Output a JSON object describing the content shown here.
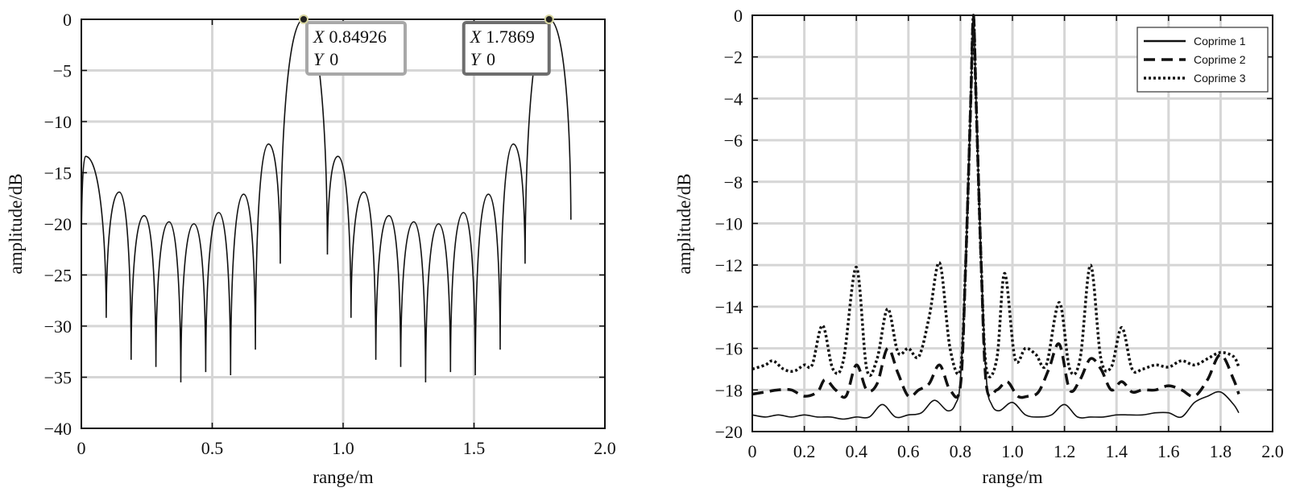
{
  "chart_data": [
    {
      "type": "line",
      "xlabel": "range/m",
      "ylabel": "amplitude/dB",
      "xlim": [
        0,
        2.0
      ],
      "ylim": [
        -40,
        0
      ],
      "xticks": [
        "0",
        "0.5",
        "1.0",
        "1.5",
        "2.0"
      ],
      "yticks": [
        "0",
        "−5",
        "−10",
        "−15",
        "−20",
        "−25",
        "−30",
        "−35",
        "−40"
      ],
      "grid": true,
      "series": [
        {
          "color": "#111111",
          "x_range": [
            0,
            1.87
          ],
          "peaks": [
            [
              0.016,
              -13.4
            ],
            [
              0.145,
              -16.9
            ],
            [
              0.24,
              -19.2
            ],
            [
              0.335,
              -19.8
            ],
            [
              0.43,
              -20.0
            ],
            [
              0.525,
              -18.9
            ],
            [
              0.62,
              -17.1
            ],
            [
              0.715,
              -12.2
            ],
            [
              0.8493,
              0
            ],
            [
              0.98,
              -13.4
            ],
            [
              1.08,
              -16.9
            ],
            [
              1.175,
              -19.2
            ],
            [
              1.27,
              -19.8
            ],
            [
              1.365,
              -20.0
            ],
            [
              1.46,
              -18.9
            ],
            [
              1.555,
              -17.1
            ],
            [
              1.65,
              -12.2
            ],
            [
              1.7869,
              0
            ]
          ],
          "nulls": [
            [
              0,
              -23.0
            ],
            [
              0.095,
              -29.2
            ],
            [
              0.19,
              -33.3
            ],
            [
              0.285,
              -34.0
            ],
            [
              0.38,
              -35.5
            ],
            [
              0.475,
              -34.5
            ],
            [
              0.57,
              -34.8
            ],
            [
              0.665,
              -32.3
            ],
            [
              0.76,
              -23.9
            ],
            [
              0.94,
              -23.0
            ],
            [
              1.03,
              -29.2
            ],
            [
              1.125,
              -33.3
            ],
            [
              1.22,
              -34.0
            ],
            [
              1.315,
              -35.5
            ],
            [
              1.41,
              -34.5
            ],
            [
              1.505,
              -34.8
            ],
            [
              1.6,
              -32.3
            ],
            [
              1.695,
              -23.9
            ]
          ],
          "end": [
            1.87,
            -19.6
          ]
        }
      ],
      "datatips": [
        {
          "x_label": "X",
          "x_value": "0.84926",
          "y_label": "Y",
          "y_value": "0",
          "x": 0.84926,
          "y": 0
        },
        {
          "x_label": "X",
          "x_value": "1.7869",
          "y_label": "Y",
          "y_value": "0",
          "x": 1.7869,
          "y": 0
        }
      ]
    },
    {
      "type": "line",
      "xlabel": "range/m",
      "ylabel": "amplitude/dB",
      "xlim": [
        0,
        2.0
      ],
      "ylim": [
        -20,
        0
      ],
      "xticks": [
        "0",
        "0.2",
        "0.4",
        "0.6",
        "0.8",
        "1.0",
        "1.2",
        "1.4",
        "1.6",
        "1.8",
        "2.0"
      ],
      "yticks": [
        "0",
        "−2",
        "−4",
        "−6",
        "−8",
        "−10",
        "−12",
        "−14",
        "−16",
        "−18",
        "−20"
      ],
      "grid": true,
      "legend_position": "top-right",
      "series": [
        {
          "name": "Coprime 1",
          "style": "solid",
          "color": "#111111",
          "x": [
            0,
            0.05,
            0.1,
            0.15,
            0.2,
            0.25,
            0.3,
            0.35,
            0.4,
            0.45,
            0.5,
            0.55,
            0.6,
            0.65,
            0.7,
            0.75,
            0.78,
            0.8,
            0.82,
            0.84,
            0.85,
            0.86,
            0.88,
            0.9,
            0.92,
            0.95,
            1.0,
            1.05,
            1.1,
            1.15,
            1.2,
            1.25,
            1.3,
            1.35,
            1.4,
            1.45,
            1.5,
            1.55,
            1.6,
            1.65,
            1.7,
            1.75,
            1.8,
            1.85,
            1.87
          ],
          "y": [
            -19.2,
            -19.3,
            -19.2,
            -19.3,
            -19.2,
            -19.3,
            -19.3,
            -19.4,
            -19.3,
            -19.3,
            -18.7,
            -19.3,
            -19.2,
            -19.1,
            -18.5,
            -19.0,
            -18.7,
            -17.5,
            -12.0,
            -4.0,
            0,
            -4.0,
            -12.0,
            -17.5,
            -18.7,
            -19.0,
            -18.6,
            -19.2,
            -19.3,
            -19.2,
            -18.7,
            -19.3,
            -19.3,
            -19.3,
            -19.2,
            -19.2,
            -19.2,
            -19.1,
            -19.1,
            -19.3,
            -18.6,
            -18.3,
            -18.1,
            -18.7,
            -19.1
          ]
        },
        {
          "name": "Coprime 2",
          "style": "dashed",
          "color": "#111111",
          "x": [
            0,
            0.05,
            0.1,
            0.15,
            0.2,
            0.25,
            0.28,
            0.32,
            0.36,
            0.4,
            0.44,
            0.48,
            0.52,
            0.56,
            0.6,
            0.64,
            0.68,
            0.72,
            0.76,
            0.8,
            0.82,
            0.84,
            0.85,
            0.86,
            0.88,
            0.9,
            0.94,
            0.98,
            1.02,
            1.06,
            1.1,
            1.14,
            1.18,
            1.22,
            1.26,
            1.3,
            1.34,
            1.38,
            1.42,
            1.46,
            1.5,
            1.55,
            1.6,
            1.65,
            1.7,
            1.75,
            1.8,
            1.85,
            1.87
          ],
          "y": [
            -18.2,
            -18.1,
            -18.0,
            -18.0,
            -18.3,
            -18.1,
            -17.5,
            -18.0,
            -18.3,
            -16.8,
            -18.0,
            -17.7,
            -16.0,
            -17.2,
            -18.3,
            -18.0,
            -17.7,
            -16.8,
            -18.0,
            -17.8,
            -12.0,
            -4.0,
            0,
            -4.0,
            -12.0,
            -17.8,
            -18.0,
            -17.6,
            -18.3,
            -18.3,
            -18.1,
            -17.0,
            -15.8,
            -18.0,
            -17.5,
            -16.5,
            -17.0,
            -18.0,
            -17.6,
            -18.1,
            -18.0,
            -18.0,
            -17.8,
            -18.0,
            -18.3,
            -17.5,
            -16.3,
            -17.5,
            -18.2
          ]
        },
        {
          "name": "Coprime 3",
          "style": "dotted",
          "color": "#111111",
          "x": [
            0,
            0.05,
            0.08,
            0.12,
            0.16,
            0.2,
            0.23,
            0.27,
            0.31,
            0.35,
            0.4,
            0.44,
            0.48,
            0.52,
            0.56,
            0.6,
            0.64,
            0.68,
            0.72,
            0.76,
            0.8,
            0.82,
            0.84,
            0.85,
            0.86,
            0.88,
            0.9,
            0.94,
            0.97,
            1.01,
            1.05,
            1.09,
            1.13,
            1.18,
            1.22,
            1.26,
            1.3,
            1.34,
            1.38,
            1.42,
            1.46,
            1.5,
            1.55,
            1.6,
            1.65,
            1.7,
            1.75,
            1.8,
            1.85,
            1.87
          ],
          "y": [
            -17.0,
            -16.8,
            -16.6,
            -17.0,
            -17.1,
            -16.8,
            -16.8,
            -14.9,
            -17.0,
            -16.6,
            -12.1,
            -17.0,
            -16.5,
            -14.1,
            -16.2,
            -16.0,
            -16.4,
            -14.5,
            -11.9,
            -16.0,
            -17.0,
            -12.0,
            -4.0,
            0,
            -4.0,
            -12.0,
            -17.0,
            -16.5,
            -12.4,
            -16.5,
            -16.0,
            -16.3,
            -16.8,
            -13.8,
            -17.0,
            -16.5,
            -12.0,
            -16.5,
            -16.9,
            -15.0,
            -17.0,
            -17.0,
            -16.8,
            -16.9,
            -16.6,
            -16.8,
            -16.5,
            -16.2,
            -16.4,
            -16.9
          ]
        }
      ]
    }
  ]
}
